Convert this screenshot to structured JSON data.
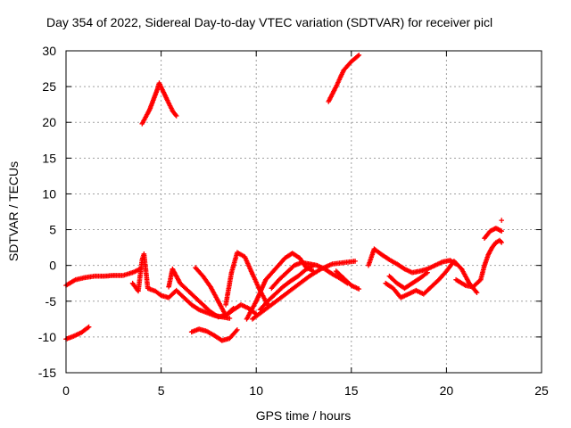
{
  "chart_data": {
    "type": "scatter",
    "title": "Day 354 of 2022, Sidereal Day-to-day VTEC variation (SDTVAR) for receiver picl",
    "xlabel": "GPS time / hours",
    "ylabel": "SDTVAR / TECUs",
    "xlim": [
      0,
      25
    ],
    "ylim": [
      -15,
      30
    ],
    "xticks": [
      0,
      5,
      10,
      15,
      20,
      25
    ],
    "yticks": [
      -15,
      -10,
      -5,
      0,
      5,
      10,
      15,
      20,
      25,
      30
    ],
    "xtick_labels": [
      "0",
      "5",
      "10",
      "15",
      "20",
      "25"
    ],
    "ytick_labels": [
      "-15",
      "-10",
      "-5",
      "0",
      "5",
      "10",
      "15",
      "20",
      "25",
      "30"
    ],
    "grid": true,
    "marker": "+",
    "color": "#ff0000",
    "series": [
      {
        "name": "s1",
        "x": [
          0.0,
          0.5,
          1.0,
          1.5,
          2.0,
          2.5,
          3.0,
          3.5,
          3.9
        ],
        "y": [
          -2.8,
          -2.0,
          -1.7,
          -1.5,
          -1.5,
          -1.4,
          -1.4,
          -1.0,
          -0.5
        ]
      },
      {
        "name": "s2",
        "x": [
          0.0,
          0.4,
          0.8,
          1.2
        ],
        "y": [
          -10.3,
          -9.9,
          -9.4,
          -8.6
        ]
      },
      {
        "name": "s3",
        "x": [
          4.0,
          4.4,
          4.8,
          4.9,
          5.2,
          5.6,
          5.8
        ],
        "y": [
          19.8,
          21.8,
          24.6,
          25.5,
          23.8,
          21.6,
          20.9
        ]
      },
      {
        "name": "s4",
        "x": [
          3.5,
          3.8,
          4.0,
          4.1,
          4.3,
          4.7,
          5.0,
          5.4,
          5.8,
          6.2,
          6.6,
          7.0,
          7.4,
          7.8,
          8.2,
          8.6
        ],
        "y": [
          -2.5,
          -3.6,
          0.8,
          1.6,
          -3.2,
          -3.6,
          -4.2,
          -4.5,
          -3.5,
          -4.5,
          -5.5,
          -6.2,
          -6.6,
          -7.0,
          -7.2,
          -7.4
        ]
      },
      {
        "name": "s5",
        "x": [
          5.4,
          5.6,
          5.8,
          6.0,
          6.4,
          6.8,
          7.2,
          7.6,
          8.0,
          8.4,
          8.8,
          9.2,
          9.6,
          10.0
        ],
        "y": [
          -3.0,
          -0.5,
          -1.5,
          -2.5,
          -3.5,
          -4.5,
          -5.5,
          -6.5,
          -7.2,
          -7.0,
          -6.2,
          -5.5,
          -6.0,
          -6.8
        ]
      },
      {
        "name": "s6",
        "x": [
          6.6,
          7.0,
          7.4,
          7.8,
          8.2,
          8.6,
          9.0
        ],
        "y": [
          -9.3,
          -8.9,
          -9.2,
          -9.8,
          -10.5,
          -10.2,
          -9.0
        ]
      },
      {
        "name": "s7",
        "x": [
          6.8,
          7.2,
          7.6,
          8.0,
          8.4,
          8.8
        ],
        "y": [
          -0.3,
          -1.5,
          -3.0,
          -5.0,
          -7.0,
          -6.0
        ]
      },
      {
        "name": "s8",
        "x": [
          8.4,
          8.7,
          9.0,
          9.4,
          9.8,
          10.2,
          10.6
        ],
        "y": [
          -5.5,
          -1.0,
          1.8,
          1.2,
          -1.2,
          -3.5,
          -5.5
        ]
      },
      {
        "name": "s9",
        "x": [
          9.5,
          10.0,
          10.5,
          11.0,
          11.5,
          11.9,
          12.3,
          12.6,
          13.0
        ],
        "y": [
          -7.5,
          -5.0,
          -2.0,
          -0.5,
          1.0,
          1.7,
          1.0,
          -0.2,
          -0.8
        ]
      },
      {
        "name": "s10",
        "x": [
          9.8,
          10.3,
          10.8,
          11.3,
          11.8,
          12.3,
          12.8,
          13.4,
          14.0,
          14.6,
          15.2
        ],
        "y": [
          -7.5,
          -6.5,
          -5.5,
          -4.5,
          -3.5,
          -2.5,
          -1.5,
          -0.5,
          0.2,
          0.4,
          0.6
        ]
      },
      {
        "name": "s11",
        "x": [
          10.2,
          10.6,
          11.0,
          11.4,
          11.8,
          12.2,
          12.6,
          13.0
        ],
        "y": [
          -6.2,
          -5.0,
          -4.0,
          -3.0,
          -2.2,
          -1.5,
          -0.6,
          0.0
        ]
      },
      {
        "name": "s12",
        "x": [
          10.8,
          11.2,
          11.6,
          12.0,
          12.4,
          12.8,
          13.2,
          13.6,
          14.0,
          14.4,
          14.8
        ],
        "y": [
          -3.2,
          -2.0,
          -1.0,
          0.0,
          0.4,
          0.2,
          0.0,
          -0.5,
          -1.2,
          -1.8,
          -2.5
        ]
      },
      {
        "name": "s13",
        "x": [
          14.2,
          14.6,
          15.0,
          15.4
        ],
        "y": [
          -0.8,
          -1.8,
          -2.8,
          -3.3
        ]
      },
      {
        "name": "s14",
        "x": [
          13.8,
          14.2,
          14.6,
          15.0,
          15.4
        ],
        "y": [
          22.9,
          25.0,
          27.3,
          28.5,
          29.4
        ]
      },
      {
        "name": "s15",
        "x": [
          15.9,
          16.2,
          16.6,
          17.0,
          17.4,
          17.8,
          18.2,
          18.6,
          19.0,
          19.4,
          19.8,
          20.2,
          20.5
        ],
        "y": [
          0.0,
          2.3,
          1.5,
          0.8,
          0.2,
          -0.5,
          -1.0,
          -0.8,
          -0.5,
          0.0,
          0.5,
          0.7,
          0.2
        ]
      },
      {
        "name": "s16",
        "x": [
          16.8,
          17.2,
          17.6,
          18.0,
          18.4,
          18.8,
          19.2,
          19.6,
          20.0,
          20.4,
          20.8,
          21.2,
          21.6
        ],
        "y": [
          -2.5,
          -3.2,
          -4.5,
          -4.0,
          -3.5,
          -4.0,
          -3.0,
          -2.0,
          -0.8,
          0.6,
          -0.5,
          -2.5,
          -3.8
        ]
      },
      {
        "name": "s17",
        "x": [
          17.0,
          17.4,
          17.8,
          18.2,
          18.6,
          19.0
        ],
        "y": [
          -1.5,
          -2.5,
          -3.2,
          -2.5,
          -1.8,
          -1.0
        ]
      },
      {
        "name": "s18",
        "x": [
          20.5,
          21.0,
          21.4,
          21.8,
          22.0,
          22.2,
          22.4,
          22.6,
          22.8,
          22.9
        ],
        "y": [
          -2.0,
          -2.8,
          -3.0,
          -2.0,
          0.0,
          1.5,
          2.5,
          3.2,
          3.5,
          3.2
        ]
      },
      {
        "name": "s19",
        "x": [
          22.0,
          22.3,
          22.6,
          22.9
        ],
        "y": [
          3.8,
          4.8,
          5.2,
          4.8
        ]
      },
      {
        "name": "s20",
        "x": [
          22.9
        ],
        "y": [
          6.3
        ]
      }
    ]
  }
}
